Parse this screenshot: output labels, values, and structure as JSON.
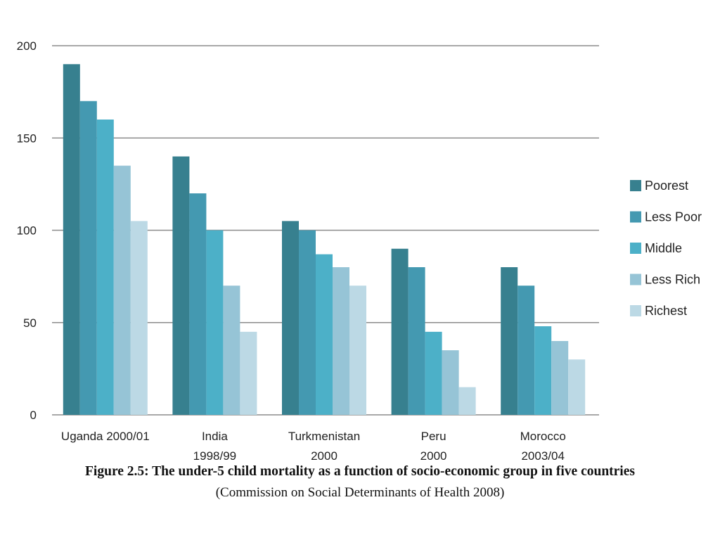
{
  "chart_data": {
    "type": "bar",
    "categories": [
      [
        "Uganda 2000/01"
      ],
      [
        "India",
        "1998/99"
      ],
      [
        "Turkmenistan",
        "2000"
      ],
      [
        "Peru",
        "2000"
      ],
      [
        "Morocco",
        "2003/04"
      ]
    ],
    "series": [
      {
        "name": "Poorest",
        "color": "#37808f",
        "values": [
          190,
          140,
          105,
          90,
          80
        ]
      },
      {
        "name": "Less Poor",
        "color": "#4499b1",
        "values": [
          170,
          120,
          100,
          80,
          70
        ]
      },
      {
        "name": "Middle",
        "color": "#4cb0c8",
        "values": [
          160,
          100,
          87,
          45,
          48
        ]
      },
      {
        "name": "Less Rich",
        "color": "#96c4d6",
        "values": [
          135,
          70,
          80,
          35,
          40
        ]
      },
      {
        "name": "Richest",
        "color": "#bcd9e5",
        "values": [
          105,
          45,
          70,
          15,
          30
        ]
      }
    ],
    "yticks": [
      0,
      50,
      100,
      150,
      200
    ],
    "ylim": [
      0,
      200
    ],
    "grid": true,
    "legend_position": "right"
  },
  "caption": {
    "title": "Figure 2.5: The under-5 child mortality as a function of socio-economic group in five countries",
    "source": "(Commission on Social Determinants of Health 2008)"
  }
}
